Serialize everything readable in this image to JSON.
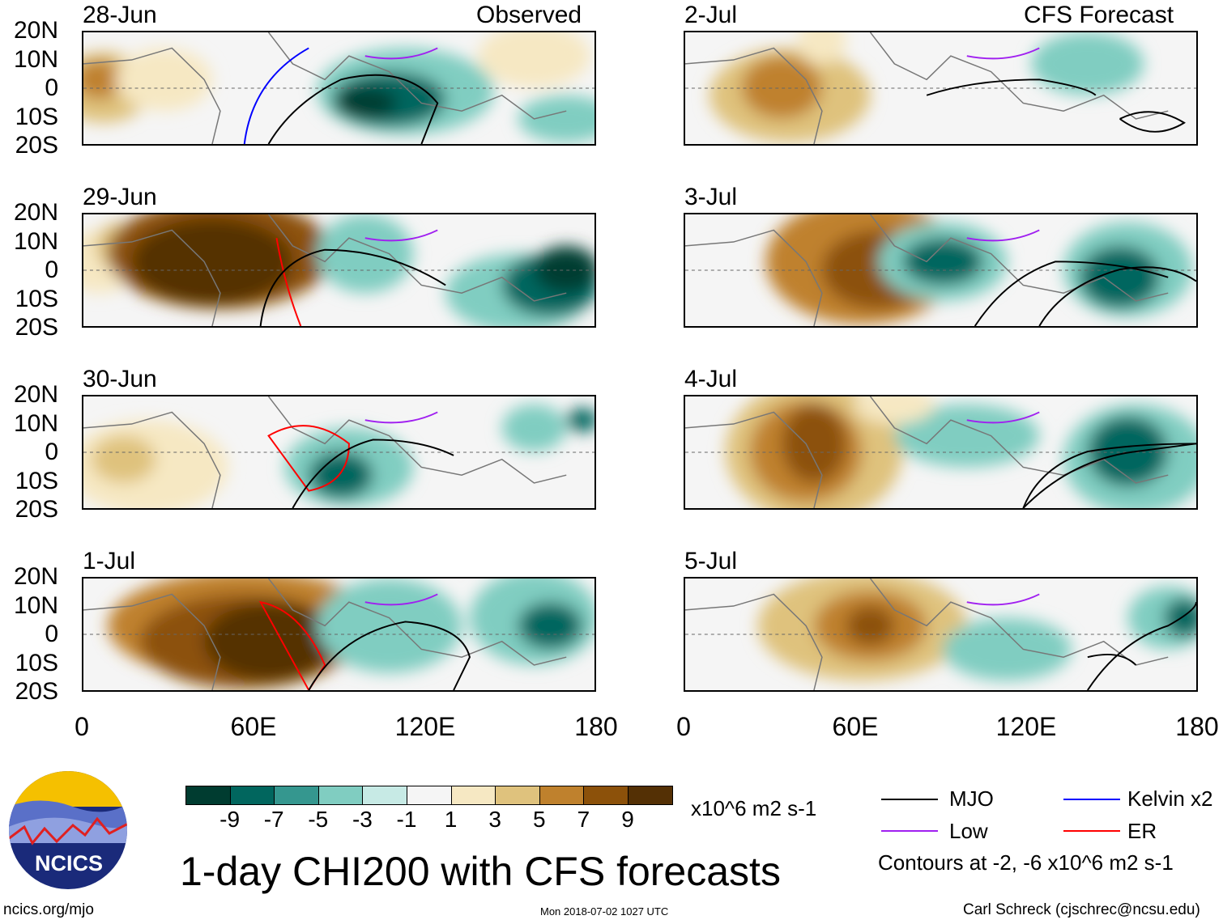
{
  "title": "1-day CHI200 with CFS forecasts",
  "left_header": "Observed",
  "right_header": "CFS Forecast",
  "left_dates": [
    "28-Jun",
    "29-Jun",
    "30-Jun",
    "1-Jul"
  ],
  "right_dates": [
    "2-Jul",
    "3-Jul",
    "4-Jul",
    "5-Jul"
  ],
  "lat_labels": [
    "20N",
    "10N",
    "0",
    "10S",
    "20S"
  ],
  "lon_labels": [
    "0",
    "60E",
    "120E",
    "180"
  ],
  "colorbar": {
    "labels": [
      "-9",
      "-7",
      "-5",
      "-3",
      "-1",
      "1",
      "3",
      "5",
      "7",
      "9"
    ],
    "colors": [
      "#003c30",
      "#01665e",
      "#35978f",
      "#80cdc1",
      "#c7eae5",
      "#f5f5f5",
      "#f6e8c3",
      "#dfc27d",
      "#bf812d",
      "#8c510a",
      "#543005"
    ],
    "units": "x10^6 m2 s-1"
  },
  "legend": {
    "items": [
      {
        "label": "MJO",
        "color": "#000000"
      },
      {
        "label": "Kelvin x2",
        "color": "#0000ff"
      },
      {
        "label": "Low",
        "color": "#a020f0"
      },
      {
        "label": "ER",
        "color": "#ff0000"
      }
    ],
    "note": "Contours at -2, -6 x10^6 m2 s-1"
  },
  "logo_text": "NCICS",
  "footer": {
    "left": "ncics.org/mjo",
    "center": "Mon 2018-07-02 1027 UTC",
    "right": "Carl Schreck (cjschrec@ncsu.edu)"
  }
}
